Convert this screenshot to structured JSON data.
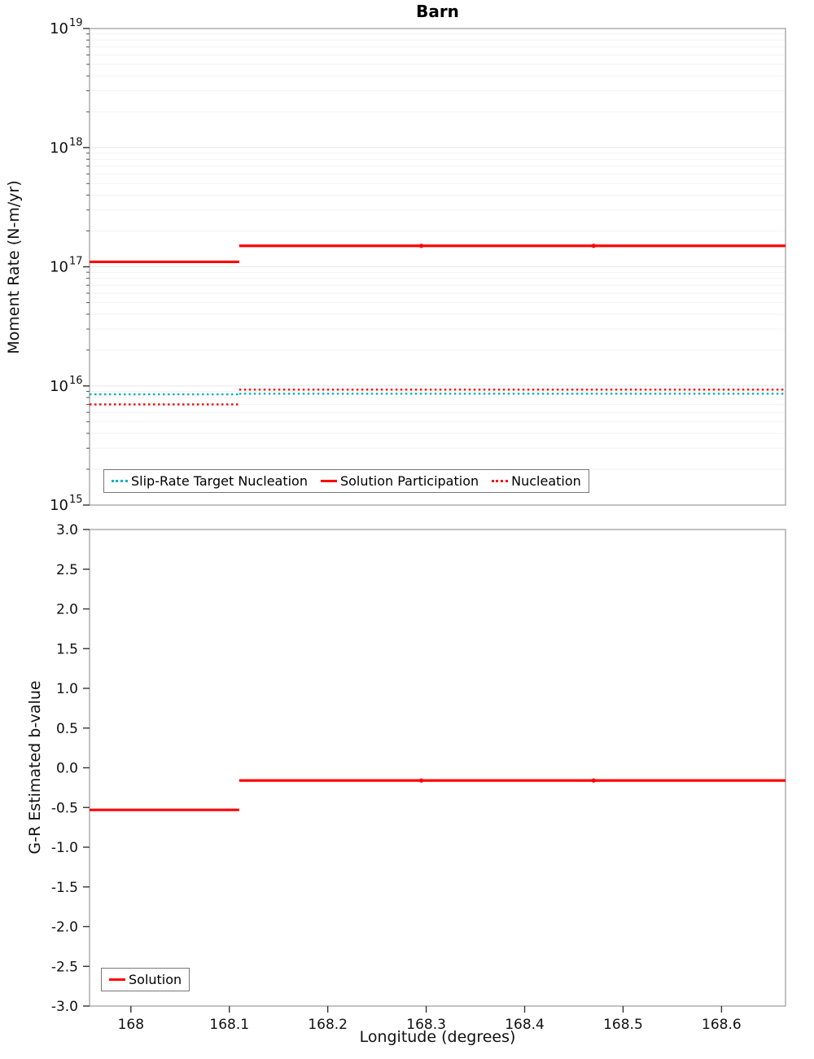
{
  "figure_title": "Barn",
  "chart_data": [
    {
      "id": "moment-rate-plot",
      "type": "line",
      "title": "Barn",
      "ylabel": "Moment Rate (N-m/yr)",
      "yscale": "log",
      "ylim": [
        1000000000000000.0,
        1e+19
      ],
      "y_tick_exponents": [
        15,
        16,
        17,
        18,
        19
      ],
      "xlim": [
        167.958,
        168.665
      ],
      "x_ticks": [],
      "grid": "horizontal-minor",
      "legend_position": "bottom-center",
      "series": [
        {
          "name": "Slip-Rate Target Nucleation",
          "color": "#00B3BE",
          "style": "dotted",
          "steps": [
            {
              "x": [
                167.958,
                168.11
              ],
              "y": 8500000000000000.0
            },
            {
              "x": [
                168.11,
                168.665
              ],
              "y": 8600000000000000.0
            }
          ]
        },
        {
          "name": "Solution Participation",
          "color": "#FF0000",
          "style": "solid",
          "steps": [
            {
              "x": [
                167.958,
                168.11
              ],
              "y": 1.1e+17
            },
            {
              "x": [
                168.11,
                168.665
              ],
              "y": 1.5e+17
            }
          ],
          "markers_x": [
            168.295,
            168.47
          ]
        },
        {
          "name": "Nucleation",
          "color": "#FF0000",
          "style": "dotted",
          "steps": [
            {
              "x": [
                167.958,
                168.11
              ],
              "y": 7000000000000000.0
            },
            {
              "x": [
                168.11,
                168.665
              ],
              "y": 9300000000000000.0
            }
          ]
        }
      ]
    },
    {
      "id": "b-value-plot",
      "type": "line",
      "title": "",
      "ylabel": "G-R Estimated b-value",
      "xlabel": "Longitude (degrees)",
      "yscale": "linear",
      "ylim": [
        -3.0,
        3.0
      ],
      "y_tick_step": 0.5,
      "xlim": [
        167.958,
        168.665
      ],
      "x_ticks": [
        168,
        168.1,
        168.2,
        168.3,
        168.4,
        168.5,
        168.6
      ],
      "grid": "none",
      "legend_position": "bottom-left",
      "series": [
        {
          "name": "Solution",
          "color": "#FF0000",
          "style": "solid",
          "steps": [
            {
              "x": [
                167.958,
                168.11
              ],
              "y": -0.53
            },
            {
              "x": [
                168.11,
                168.665
              ],
              "y": -0.16
            }
          ],
          "markers_x": [
            168.295,
            168.47
          ]
        }
      ]
    }
  ]
}
